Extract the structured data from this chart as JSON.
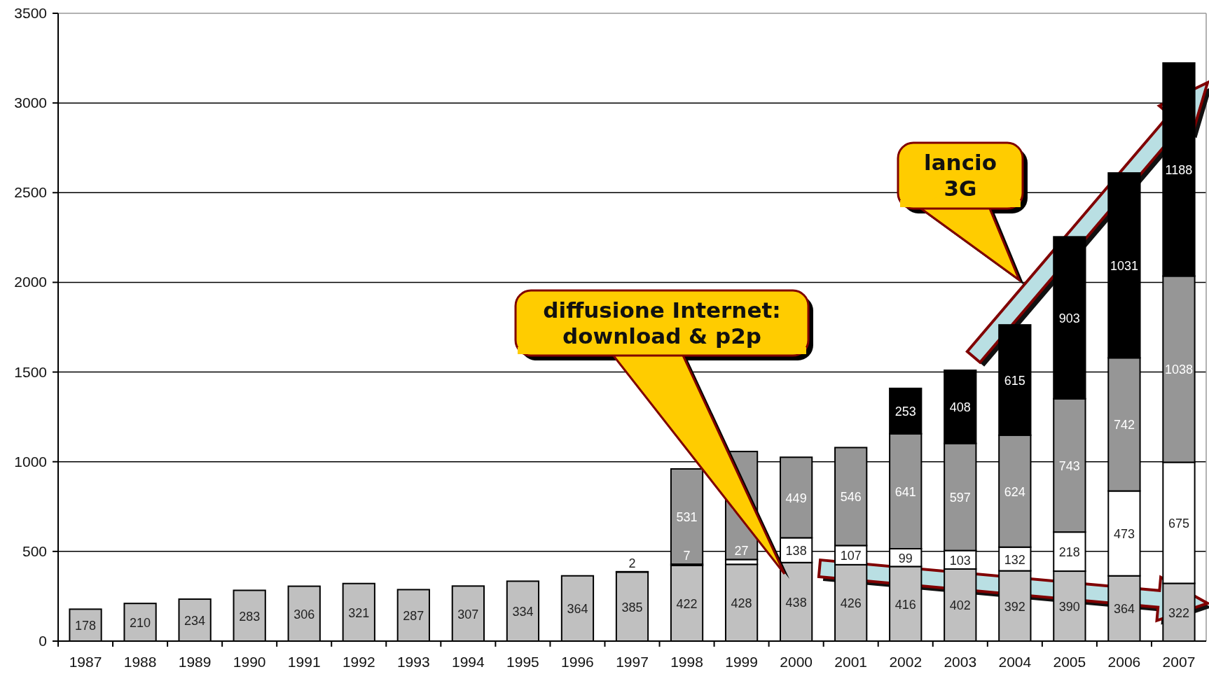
{
  "chart_data": {
    "type": "bar",
    "stacked": true,
    "data_labels": true,
    "grid": "y",
    "categories": [
      "1987",
      "1988",
      "1989",
      "1990",
      "1991",
      "1992",
      "1993",
      "1994",
      "1995",
      "1996",
      "1997",
      "1998",
      "1999",
      "2000",
      "2001",
      "2002",
      "2003",
      "2004",
      "2005",
      "2006",
      "2007"
    ],
    "series": [
      {
        "color": "#c0c0c0",
        "values": [
          178,
          210,
          234,
          283,
          306,
          321,
          287,
          307,
          334,
          364,
          385,
          422,
          428,
          438,
          426,
          416,
          402,
          392,
          390,
          364,
          322
        ]
      },
      {
        "color": "#ffffff",
        "values": [
          null,
          null,
          null,
          null,
          null,
          null,
          null,
          null,
          null,
          null,
          2,
          7,
          27,
          138,
          107,
          99,
          103,
          132,
          218,
          473,
          675
        ]
      },
      {
        "color": "#969696",
        "values": [
          null,
          null,
          null,
          null,
          null,
          null,
          null,
          null,
          null,
          null,
          null,
          531,
          602,
          449,
          546,
          641,
          597,
          624,
          743,
          742,
          1038
        ]
      },
      {
        "color": "#000000",
        "values": [
          null,
          null,
          null,
          null,
          null,
          null,
          null,
          null,
          null,
          null,
          null,
          null,
          null,
          null,
          null,
          253,
          408,
          615,
          903,
          1031,
          1188
        ]
      }
    ],
    "ylim": [
      0,
      3500
    ],
    "yticks": [
      0,
      500,
      1000,
      1500,
      2000,
      2500,
      3000,
      3500
    ],
    "annotations": [
      "diffusione Internet:\ndownload & p2p",
      "lancio\n3G"
    ]
  }
}
